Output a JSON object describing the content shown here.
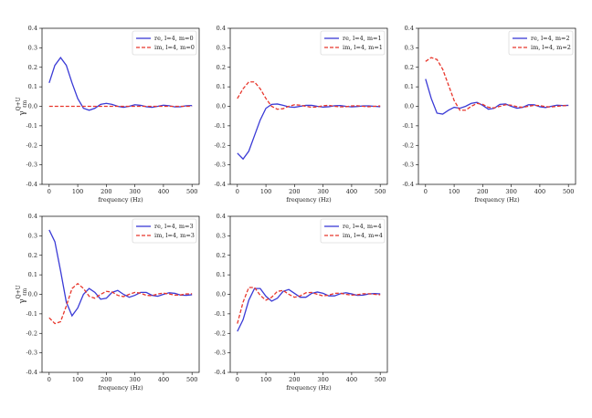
{
  "chart_data": [
    {
      "type": "line",
      "xlabel": "frequency (Hz)",
      "ylabel": {
        "base": "γ",
        "sup": "Q+U",
        "sub": "ℓm"
      },
      "xlim": [
        -25,
        525
      ],
      "ylim": [
        -0.4,
        0.4
      ],
      "xticks": [
        0,
        100,
        200,
        300,
        400,
        500
      ],
      "yticks": [
        -0.4,
        -0.3,
        -0.2,
        -0.1,
        {
          "value": 0,
          "label": "0.0"
        },
        0.1,
        0.2,
        0.3,
        0.4
      ],
      "legend": "upper right",
      "x": [
        0,
        20,
        40,
        60,
        80,
        100,
        120,
        140,
        160,
        180,
        200,
        220,
        240,
        260,
        280,
        300,
        320,
        340,
        360,
        380,
        400,
        420,
        440,
        460,
        480,
        500
      ],
      "series": [
        {
          "name": "re, l=4, m=0",
          "color": "#3a3ad6",
          "linestyle": "solid",
          "values": [
            0.12,
            0.21,
            0.25,
            0.21,
            0.12,
            0.04,
            -0.01,
            -0.02,
            -0.01,
            0.01,
            0.015,
            0.01,
            0.0,
            -0.005,
            0.0,
            0.008,
            0.005,
            -0.002,
            -0.005,
            0.0,
            0.006,
            0.003,
            -0.003,
            -0.002,
            0.003,
            0.004
          ]
        },
        {
          "name": "im, l=4, m=0",
          "color": "#e8372c",
          "linestyle": "dashed",
          "values": [
            0,
            0,
            0,
            0,
            0,
            0,
            0,
            0,
            0,
            0,
            0,
            0,
            0,
            0,
            0,
            0,
            0,
            0,
            0,
            0,
            0,
            0,
            0,
            0,
            0,
            0
          ]
        }
      ]
    },
    {
      "type": "line",
      "xlabel": "frequency (Hz)",
      "xlim": [
        -25,
        525
      ],
      "ylim": [
        -0.4,
        0.4
      ],
      "xticks": [
        0,
        100,
        200,
        300,
        400,
        500
      ],
      "yticks": [
        -0.4,
        -0.3,
        -0.2,
        -0.1,
        {
          "value": 0,
          "label": "0.0"
        },
        0.1,
        0.2,
        0.3,
        0.4
      ],
      "legend": "upper right",
      "x": [
        0,
        20,
        40,
        60,
        80,
        100,
        120,
        140,
        160,
        180,
        200,
        220,
        240,
        260,
        280,
        300,
        320,
        340,
        360,
        380,
        400,
        420,
        440,
        460,
        480,
        500
      ],
      "series": [
        {
          "name": "re, l=4, m=1",
          "color": "#3a3ad6",
          "linestyle": "solid",
          "values": [
            -0.24,
            -0.27,
            -0.23,
            -0.15,
            -0.07,
            -0.01,
            0.01,
            0.012,
            0.005,
            -0.003,
            -0.005,
            0.0,
            0.005,
            0.005,
            0.0,
            -0.004,
            -0.002,
            0.003,
            0.004,
            0.0,
            -0.003,
            -0.001,
            0.002,
            0.002,
            0.0,
            -0.002
          ]
        },
        {
          "name": "im, l=4, m=1",
          "color": "#e8372c",
          "linestyle": "dashed",
          "values": [
            0.04,
            0.09,
            0.125,
            0.125,
            0.09,
            0.04,
            0.0,
            -0.015,
            -0.012,
            0.0,
            0.008,
            0.006,
            0.0,
            -0.005,
            -0.003,
            0.003,
            0.005,
            0.0,
            -0.003,
            -0.002,
            0.002,
            0.003,
            0.0,
            -0.002,
            0.0,
            0.002
          ]
        }
      ]
    },
    {
      "type": "line",
      "xlabel": "frequency (Hz)",
      "xlim": [
        -25,
        525
      ],
      "ylim": [
        -0.4,
        0.4
      ],
      "xticks": [
        0,
        100,
        200,
        300,
        400,
        500
      ],
      "yticks": [
        -0.4,
        -0.3,
        -0.2,
        -0.1,
        {
          "value": 0,
          "label": "0.0"
        },
        0.1,
        0.2,
        0.3,
        0.4
      ],
      "legend": "upper right",
      "x": [
        0,
        20,
        40,
        60,
        80,
        100,
        120,
        140,
        160,
        180,
        200,
        220,
        240,
        260,
        280,
        300,
        320,
        340,
        360,
        380,
        400,
        420,
        440,
        460,
        480,
        500
      ],
      "series": [
        {
          "name": "re, l=4, m=2",
          "color": "#3a3ad6",
          "linestyle": "solid",
          "values": [
            0.14,
            0.04,
            -0.035,
            -0.04,
            -0.02,
            -0.005,
            -0.01,
            0.0,
            0.015,
            0.02,
            0.005,
            -0.015,
            -0.01,
            0.01,
            0.012,
            0.0,
            -0.01,
            -0.005,
            0.008,
            0.008,
            -0.002,
            -0.006,
            0.0,
            0.006,
            0.004,
            0.005
          ]
        },
        {
          "name": "im, l=4, m=2",
          "color": "#e8372c",
          "linestyle": "dashed",
          "values": [
            0.23,
            0.25,
            0.24,
            0.19,
            0.11,
            0.03,
            -0.02,
            -0.02,
            0.0,
            0.015,
            0.01,
            -0.005,
            -0.008,
            0.0,
            0.008,
            0.006,
            -0.002,
            -0.005,
            0.0,
            0.005,
            0.004,
            -0.002,
            -0.003,
            0.0,
            0.003,
            0.004
          ]
        }
      ]
    },
    {
      "type": "line",
      "xlabel": "frequency (Hz)",
      "ylabel": {
        "base": "γ",
        "sup": "Q+U",
        "sub": "ℓm"
      },
      "xlim": [
        -25,
        525
      ],
      "ylim": [
        -0.4,
        0.4
      ],
      "xticks": [
        0,
        100,
        200,
        300,
        400,
        500
      ],
      "yticks": [
        -0.4,
        -0.3,
        -0.2,
        -0.1,
        {
          "value": 0,
          "label": "0.0"
        },
        0.1,
        0.2,
        0.3,
        0.4
      ],
      "legend": "upper right",
      "x": [
        0,
        20,
        40,
        60,
        80,
        100,
        120,
        140,
        160,
        180,
        200,
        220,
        240,
        260,
        280,
        300,
        320,
        340,
        360,
        380,
        400,
        420,
        440,
        460,
        480,
        500
      ],
      "series": [
        {
          "name": "re, l=4, m=3",
          "color": "#3a3ad6",
          "linestyle": "solid",
          "values": [
            0.33,
            0.27,
            0.12,
            -0.04,
            -0.11,
            -0.07,
            0.0,
            0.03,
            0.01,
            -0.025,
            -0.02,
            0.01,
            0.02,
            0.0,
            -0.015,
            -0.005,
            0.01,
            0.01,
            -0.005,
            -0.01,
            0.0,
            0.008,
            0.005,
            -0.004,
            -0.005,
            -0.002
          ]
        },
        {
          "name": "im, l=4, m=3",
          "color": "#e8372c",
          "linestyle": "dashed",
          "values": [
            -0.12,
            -0.15,
            -0.14,
            -0.06,
            0.03,
            0.055,
            0.03,
            -0.01,
            -0.02,
            0.0,
            0.015,
            0.012,
            -0.005,
            -0.012,
            0.0,
            0.01,
            0.006,
            -0.005,
            -0.007,
            0.002,
            0.006,
            0.002,
            -0.004,
            -0.003,
            0.002,
            0.003
          ]
        }
      ]
    },
    {
      "type": "line",
      "xlabel": "frequency (Hz)",
      "xlim": [
        -25,
        525
      ],
      "ylim": [
        -0.4,
        0.4
      ],
      "xticks": [
        0,
        100,
        200,
        300,
        400,
        500
      ],
      "yticks": [
        -0.4,
        -0.3,
        -0.2,
        -0.1,
        {
          "value": 0,
          "label": "0.0"
        },
        0.1,
        0.2,
        0.3,
        0.4
      ],
      "legend": "upper right",
      "x": [
        0,
        20,
        40,
        60,
        80,
        100,
        120,
        140,
        160,
        180,
        200,
        220,
        240,
        260,
        280,
        300,
        320,
        340,
        360,
        380,
        400,
        420,
        440,
        460,
        480,
        500
      ],
      "series": [
        {
          "name": "re, l=4, m=4",
          "color": "#3a3ad6",
          "linestyle": "solid",
          "values": [
            -0.19,
            -0.13,
            -0.03,
            0.03,
            0.03,
            -0.01,
            -0.035,
            -0.02,
            0.015,
            0.025,
            0.005,
            -0.015,
            -0.015,
            0.005,
            0.012,
            0.005,
            -0.008,
            -0.008,
            0.003,
            0.008,
            0.002,
            -0.005,
            -0.004,
            0.002,
            0.004,
            0.002
          ]
        },
        {
          "name": "im, l=4, m=4",
          "color": "#e8372c",
          "linestyle": "dashed",
          "values": [
            -0.15,
            -0.04,
            0.035,
            0.035,
            -0.005,
            -0.03,
            -0.015,
            0.015,
            0.02,
            0.0,
            -0.015,
            -0.008,
            0.008,
            0.01,
            0.0,
            -0.008,
            -0.004,
            0.005,
            0.006,
            0.0,
            -0.004,
            -0.002,
            0.003,
            0.003,
            0.0,
            -0.002
          ]
        }
      ]
    }
  ]
}
